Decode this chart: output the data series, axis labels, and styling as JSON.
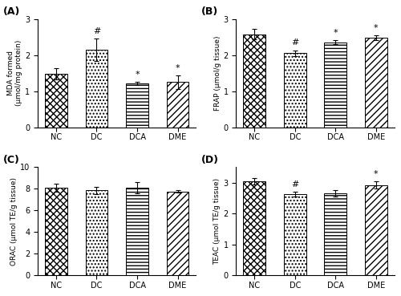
{
  "panels": [
    "A",
    "B",
    "C",
    "D"
  ],
  "categories": [
    "NC",
    "DC",
    "DCA",
    "DME"
  ],
  "A": {
    "values": [
      1.48,
      2.15,
      1.22,
      1.25
    ],
    "errors": [
      0.15,
      0.32,
      0.05,
      0.18
    ],
    "ylabel": "MDA formed\n(μmol/mg protein)",
    "ylim": [
      0,
      3
    ],
    "yticks": [
      0,
      1,
      2,
      3
    ],
    "annotations": [
      "",
      "#",
      "*",
      "*"
    ]
  },
  "B": {
    "values": [
      2.58,
      2.06,
      2.36,
      2.49
    ],
    "errors": [
      0.15,
      0.08,
      0.06,
      0.07
    ],
    "ylabel": "FRAP (μmol/g tissue)",
    "ylim": [
      0,
      3
    ],
    "yticks": [
      0,
      1,
      2,
      3
    ],
    "annotations": [
      "",
      "#",
      "*",
      "*"
    ]
  },
  "C": {
    "values": [
      8.1,
      7.85,
      8.1,
      7.75
    ],
    "errors": [
      0.35,
      0.35,
      0.55,
      0.12
    ],
    "ylabel": "ORAC (μmol TE/g tissue)",
    "ylim": [
      0,
      10
    ],
    "yticks": [
      0,
      2,
      4,
      6,
      8,
      10
    ],
    "annotations": [
      "",
      "",
      "",
      ""
    ]
  },
  "D": {
    "values": [
      3.05,
      2.62,
      2.65,
      2.92
    ],
    "errors": [
      0.1,
      0.08,
      0.1,
      0.12
    ],
    "ylabel": "TEAC (μmol TE/g tissue)",
    "ylim": [
      0,
      3.5
    ],
    "yticks": [
      0,
      1,
      2,
      3
    ],
    "annotations": [
      "",
      "#",
      "",
      "*"
    ]
  },
  "fig_bg": "#ffffff",
  "bar_width": 0.55,
  "hatch_NC": "xxxx",
  "hatch_DC": "....",
  "hatch_DCA": "----",
  "hatch_DME": "////"
}
